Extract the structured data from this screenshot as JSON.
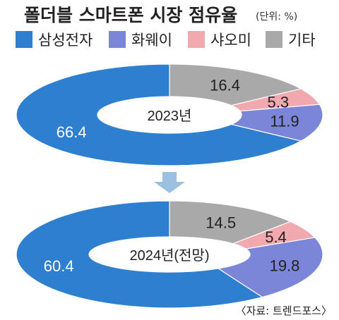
{
  "title": "폴더블 스마트폰 시장 점유율",
  "unit": "(단위: %)",
  "source": "〈자료: 트렌드포스〉",
  "colors": {
    "samsung": "#2f7fd0",
    "huawei": "#7c86d8",
    "xiaomi": "#f1a8ae",
    "other": "#a9a9a9",
    "arrow": "#9cc0e0"
  },
  "chart_data": {
    "type": "pie",
    "series_names": [
      "삼성전자",
      "화웨이",
      "샤오미",
      "기타"
    ],
    "charts": [
      {
        "center_label": "2023년",
        "values": [
          66.4,
          11.9,
          5.3,
          16.4
        ],
        "labels": [
          "66.4",
          "11.9",
          "5.3",
          "16.4"
        ]
      },
      {
        "center_label": "2024년(전망)",
        "values": [
          60.4,
          19.8,
          5.4,
          14.5
        ],
        "labels": [
          "60.4",
          "19.8",
          "5.4",
          "14.5"
        ]
      }
    ]
  }
}
